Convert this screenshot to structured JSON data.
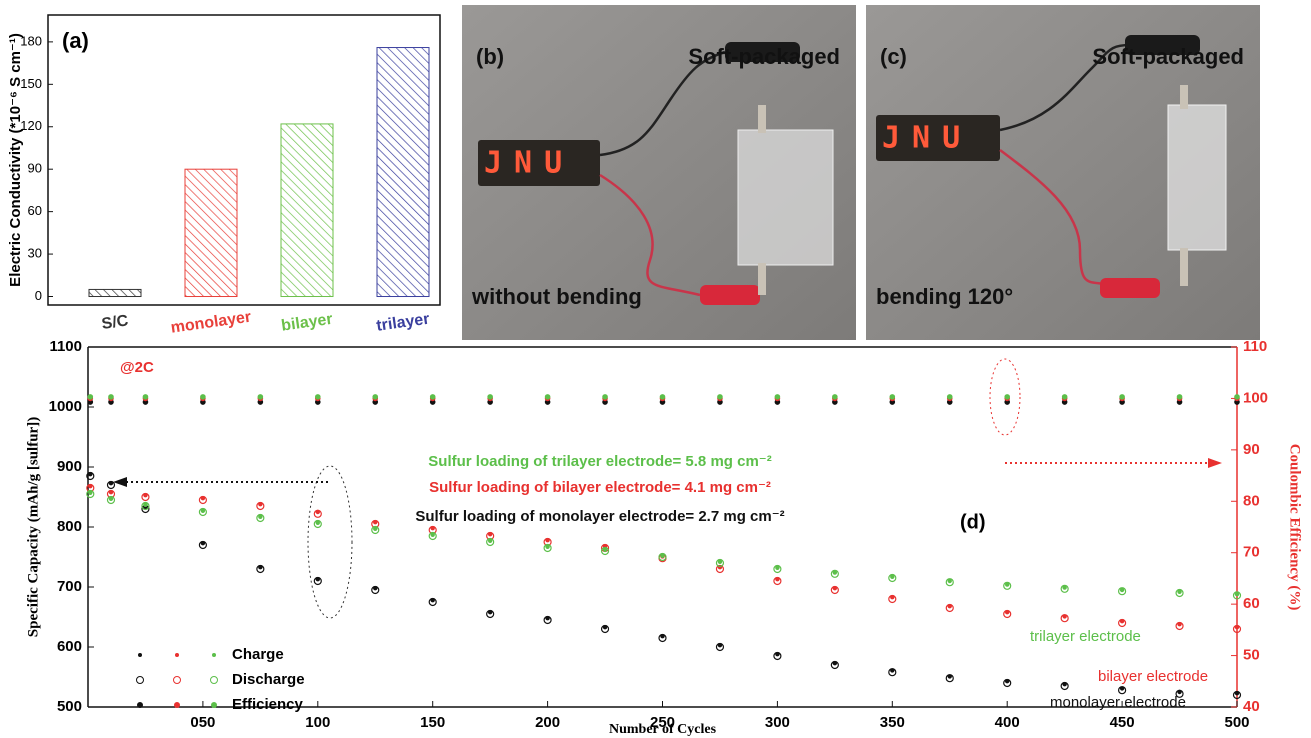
{
  "chart_data": [
    {
      "type": "bar",
      "panel_label": "(a)",
      "y_label": "Electric Conductivity (*10⁻⁶ S cm⁻¹)",
      "categories": [
        "S/C",
        "monolayer",
        "bilayer",
        "trilayer"
      ],
      "values": [
        5,
        90,
        122,
        176
      ],
      "colors": [
        "#333333",
        "#e8403a",
        "#6cc04a",
        "#3a3f9e"
      ],
      "ylim": [
        -6,
        199
      ],
      "yticks": [
        0,
        30,
        60,
        90,
        120,
        150,
        180
      ]
    },
    {
      "type": "scatter",
      "panel_label": "(d)",
      "rate_label": "@2C",
      "x_label": "Number of Cycles",
      "y_label": "Specific Capacity (mAh/g [sulfur])",
      "y2_label": "Coulombic Efficiency (%)",
      "x": [
        1,
        10,
        25,
        50,
        75,
        100,
        125,
        150,
        175,
        200,
        225,
        250,
        275,
        300,
        325,
        350,
        375,
        400,
        425,
        450,
        475,
        500
      ],
      "xlim": [
        0,
        500
      ],
      "xticks": [
        {
          "value": 50,
          "label": "050"
        },
        100,
        150,
        200,
        250,
        300,
        350,
        400,
        450,
        500
      ],
      "ylim": [
        500,
        1100
      ],
      "yticks": [
        500,
        600,
        700,
        800,
        900,
        1000,
        1100
      ],
      "y2lim": [
        40,
        110
      ],
      "y2ticks": [
        40,
        50,
        60,
        70,
        80,
        90,
        100,
        110
      ],
      "legend": [
        "Charge",
        "Discharge",
        "Efficiency"
      ],
      "electrodes": [
        {
          "label": "monolayer electrode",
          "loading": "Sulfur loading of monolayer electrode= 2.7 mg cm⁻²",
          "color": "#111111",
          "charge": [
            888,
            873,
            833,
            773,
            733,
            713,
            698,
            678,
            658,
            648,
            633,
            618,
            603,
            588,
            573,
            561,
            551,
            543,
            538,
            531,
            525,
            523
          ],
          "discharge": [
            885,
            870,
            830,
            770,
            730,
            710,
            695,
            675,
            655,
            645,
            630,
            615,
            600,
            585,
            570,
            558,
            548,
            540,
            535,
            528,
            522,
            520
          ],
          "efficiency": [
            99.3,
            99.3,
            99.3,
            99.3,
            99.3,
            99.3,
            99.3,
            99.3,
            99.3,
            99.3,
            99.3,
            99.3,
            99.3,
            99.3,
            99.3,
            99.3,
            99.3,
            99.3,
            99.3,
            99.3,
            99.3,
            99.3
          ]
        },
        {
          "label": "bilayer electrode",
          "loading": "Sulfur loading of bilayer electrode= 4.1 mg cm⁻²",
          "color": "#e8312f",
          "charge": [
            868,
            858,
            853,
            848,
            838,
            825,
            808,
            798,
            788,
            778,
            768,
            751,
            733,
            713,
            698,
            683,
            668,
            658,
            651,
            643,
            638,
            633
          ],
          "discharge": [
            865,
            855,
            850,
            845,
            835,
            822,
            805,
            795,
            785,
            775,
            765,
            748,
            730,
            710,
            695,
            680,
            665,
            655,
            648,
            640,
            635,
            630
          ],
          "efficiency": [
            100,
            100,
            100,
            100,
            100,
            100,
            100,
            100,
            100,
            100,
            100,
            100,
            100,
            100,
            100,
            100,
            100,
            100,
            100,
            100,
            100,
            100
          ]
        },
        {
          "label": "trilayer electrode",
          "loading": "Sulfur loading of trilayer electrode= 5.8 mg cm⁻²",
          "color": "#5cbf4a",
          "charge": [
            857,
            847,
            837,
            827,
            817,
            807,
            797,
            787,
            777,
            767,
            762,
            752,
            742,
            732,
            724,
            717,
            710,
            704,
            699,
            695,
            692,
            688
          ],
          "discharge": [
            855,
            845,
            835,
            825,
            815,
            805,
            795,
            785,
            775,
            765,
            760,
            750,
            740,
            730,
            722,
            715,
            708,
            702,
            697,
            693,
            690,
            686
          ],
          "efficiency": [
            100.3,
            100.3,
            100.3,
            100.3,
            100.3,
            100.3,
            100.3,
            100.3,
            100.3,
            100.3,
            100.3,
            100.3,
            100.3,
            100.3,
            100.3,
            100.3,
            100.3,
            100.3,
            100.3,
            100.3,
            100.3,
            100.3
          ]
        }
      ]
    }
  ],
  "photos": [
    {
      "label": "(b)",
      "title": "Soft-packaged",
      "caption": "without bending",
      "display": "JNU"
    },
    {
      "label": "(c)",
      "title": "Soft-packaged",
      "caption": "bending 120°",
      "display": "JNU"
    }
  ]
}
